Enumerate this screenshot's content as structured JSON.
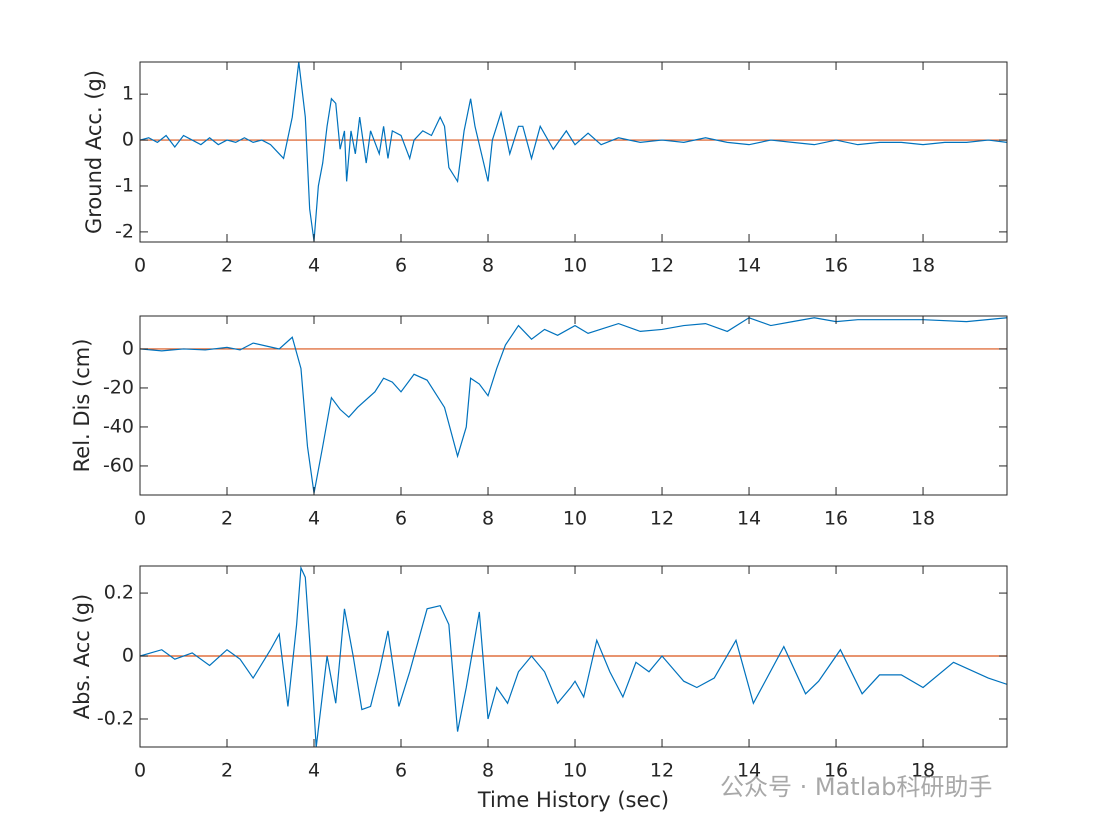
{
  "chart_data": [
    {
      "type": "line",
      "ylabel": "Ground Acc. (g)",
      "x": [
        0,
        0.2,
        0.4,
        0.6,
        0.8,
        1.0,
        1.2,
        1.4,
        1.6,
        1.8,
        2.0,
        2.2,
        2.4,
        2.6,
        2.8,
        3.0,
        3.2,
        3.3,
        3.5,
        3.65,
        3.8,
        3.9,
        4.0,
        4.1,
        4.2,
        4.3,
        4.4,
        4.5,
        4.6,
        4.7,
        4.75,
        4.85,
        4.95,
        5.05,
        5.2,
        5.3,
        5.5,
        5.6,
        5.7,
        5.8,
        6.0,
        6.2,
        6.3,
        6.5,
        6.7,
        6.9,
        7.0,
        7.1,
        7.3,
        7.45,
        7.6,
        7.7,
        7.9,
        8.0,
        8.1,
        8.3,
        8.5,
        8.7,
        8.8,
        9.0,
        9.2,
        9.5,
        9.8,
        10.0,
        10.3,
        10.6,
        11.0,
        11.5,
        12.0,
        12.5,
        13.0,
        13.5,
        14.0,
        14.5,
        15.0,
        15.5,
        16.0,
        16.5,
        17.0,
        17.5,
        18.0,
        18.5,
        19.0,
        19.5,
        19.93
      ],
      "series": [
        {
          "color": "#0072bd",
          "values": [
            0,
            0.05,
            -0.05,
            0.1,
            -0.15,
            0.1,
            0.0,
            -0.1,
            0.05,
            -0.1,
            0.0,
            -0.05,
            0.05,
            -0.05,
            0.0,
            -0.1,
            -0.3,
            -0.4,
            0.5,
            1.7,
            0.5,
            -1.5,
            -2.2,
            -1.0,
            -0.5,
            0.3,
            0.9,
            0.8,
            -0.2,
            0.2,
            -0.9,
            0.2,
            -0.3,
            0.5,
            -0.5,
            0.2,
            -0.3,
            0.3,
            -0.4,
            0.2,
            0.1,
            -0.4,
            0.0,
            0.2,
            0.1,
            0.5,
            0.3,
            -0.6,
            -0.9,
            0.2,
            0.9,
            0.3,
            -0.5,
            -0.9,
            0.0,
            0.6,
            -0.3,
            0.3,
            0.3,
            -0.4,
            0.3,
            -0.2,
            0.2,
            -0.1,
            0.15,
            -0.1,
            0.05,
            -0.05,
            0.0,
            -0.05,
            0.05,
            -0.05,
            -0.1,
            0.0,
            -0.05,
            -0.1,
            0.0,
            -0.1,
            -0.05,
            -0.05,
            -0.1,
            -0.05,
            -0.05,
            0.0,
            -0.05
          ]
        }
      ],
      "hline": {
        "value": 0,
        "color": "#d95319"
      },
      "xlim": [
        0,
        19.93
      ],
      "xticks": [
        0,
        2,
        4,
        6,
        8,
        10,
        12,
        14,
        16,
        18
      ],
      "ylim": [
        -2.22,
        1.7
      ],
      "yticks": [
        -2,
        -1,
        0,
        1
      ]
    },
    {
      "type": "line",
      "ylabel": "Rel. Dis (cm)",
      "x": [
        0,
        0.5,
        1.0,
        1.5,
        2.0,
        2.3,
        2.6,
        3.0,
        3.2,
        3.5,
        3.7,
        3.85,
        4.0,
        4.2,
        4.4,
        4.6,
        4.8,
        5.0,
        5.4,
        5.6,
        5.8,
        6.0,
        6.3,
        6.6,
        7.0,
        7.3,
        7.5,
        7.6,
        7.8,
        8.0,
        8.2,
        8.4,
        8.7,
        9.0,
        9.3,
        9.6,
        10.0,
        10.3,
        11.0,
        11.5,
        12.0,
        12.5,
        13.0,
        13.5,
        14.0,
        14.5,
        15.0,
        15.5,
        16.0,
        16.5,
        17.0,
        18.0,
        19.0,
        19.93
      ],
      "series": [
        {
          "color": "#0072bd",
          "values": [
            0,
            -1,
            0,
            -0.5,
            0.8,
            -0.5,
            3,
            1,
            0,
            6,
            -10,
            -50,
            -74,
            -50,
            -25,
            -31,
            -35,
            -30,
            -22,
            -15,
            -17,
            -22,
            -13,
            -16,
            -30,
            -55,
            -40,
            -15,
            -18,
            -24,
            -10,
            2,
            12,
            5,
            10,
            7,
            12,
            8,
            13,
            9,
            10,
            12,
            13,
            9,
            16,
            12,
            14,
            16,
            14,
            15,
            15,
            15,
            14,
            16
          ]
        }
      ],
      "hline": {
        "value": 0,
        "color": "#d95319"
      },
      "xlim": [
        0,
        19.93
      ],
      "xticks": [
        0,
        2,
        4,
        6,
        8,
        10,
        12,
        14,
        16,
        18
      ],
      "ylim": [
        -74.9,
        16.9
      ],
      "yticks": [
        -60,
        -40,
        -20,
        0
      ]
    },
    {
      "type": "line",
      "ylabel": "Abs. Acc (g)",
      "xlabel": "Time History (sec)",
      "x": [
        0,
        0.5,
        0.8,
        1.2,
        1.6,
        2.0,
        2.3,
        2.6,
        3.0,
        3.2,
        3.4,
        3.6,
        3.7,
        3.8,
        3.95,
        4.05,
        4.3,
        4.5,
        4.7,
        4.9,
        5.1,
        5.3,
        5.5,
        5.7,
        5.95,
        6.2,
        6.6,
        6.9,
        7.1,
        7.3,
        7.5,
        7.8,
        8.0,
        8.2,
        8.45,
        8.7,
        9.0,
        9.3,
        9.6,
        9.9,
        10.0,
        10.2,
        10.5,
        10.8,
        11.1,
        11.4,
        11.7,
        12.0,
        12.5,
        12.8,
        13.2,
        13.7,
        14.1,
        14.8,
        15.3,
        15.6,
        16.1,
        16.6,
        17.0,
        17.5,
        18.0,
        18.7,
        19.5,
        19.93
      ],
      "series": [
        {
          "color": "#0072bd",
          "values": [
            0,
            0.02,
            -0.01,
            0.01,
            -0.03,
            0.02,
            -0.01,
            -0.07,
            0.02,
            0.07,
            -0.16,
            0.1,
            0.28,
            0.25,
            -0.05,
            -0.29,
            0.0,
            -0.15,
            0.15,
            0.0,
            -0.17,
            -0.16,
            -0.05,
            0.08,
            -0.16,
            -0.05,
            0.15,
            0.16,
            0.1,
            -0.24,
            -0.1,
            0.14,
            -0.2,
            -0.1,
            -0.15,
            -0.05,
            0.0,
            -0.05,
            -0.15,
            -0.1,
            -0.08,
            -0.13,
            0.05,
            -0.05,
            -0.13,
            -0.02,
            -0.05,
            0.0,
            -0.08,
            -0.1,
            -0.07,
            0.05,
            -0.15,
            0.03,
            -0.12,
            -0.08,
            0.02,
            -0.12,
            -0.06,
            -0.06,
            -0.1,
            -0.02,
            -0.07,
            -0.09
          ]
        }
      ],
      "hline": {
        "value": 0,
        "color": "#d95319"
      },
      "xlim": [
        0,
        19.93
      ],
      "xticks": [
        0,
        2,
        4,
        6,
        8,
        10,
        12,
        14,
        16,
        18
      ],
      "ylim": [
        -0.289,
        0.286
      ],
      "yticks": [
        -0.2,
        0,
        0.2
      ]
    }
  ],
  "watermark": "公众号 · Matlab科研助手"
}
